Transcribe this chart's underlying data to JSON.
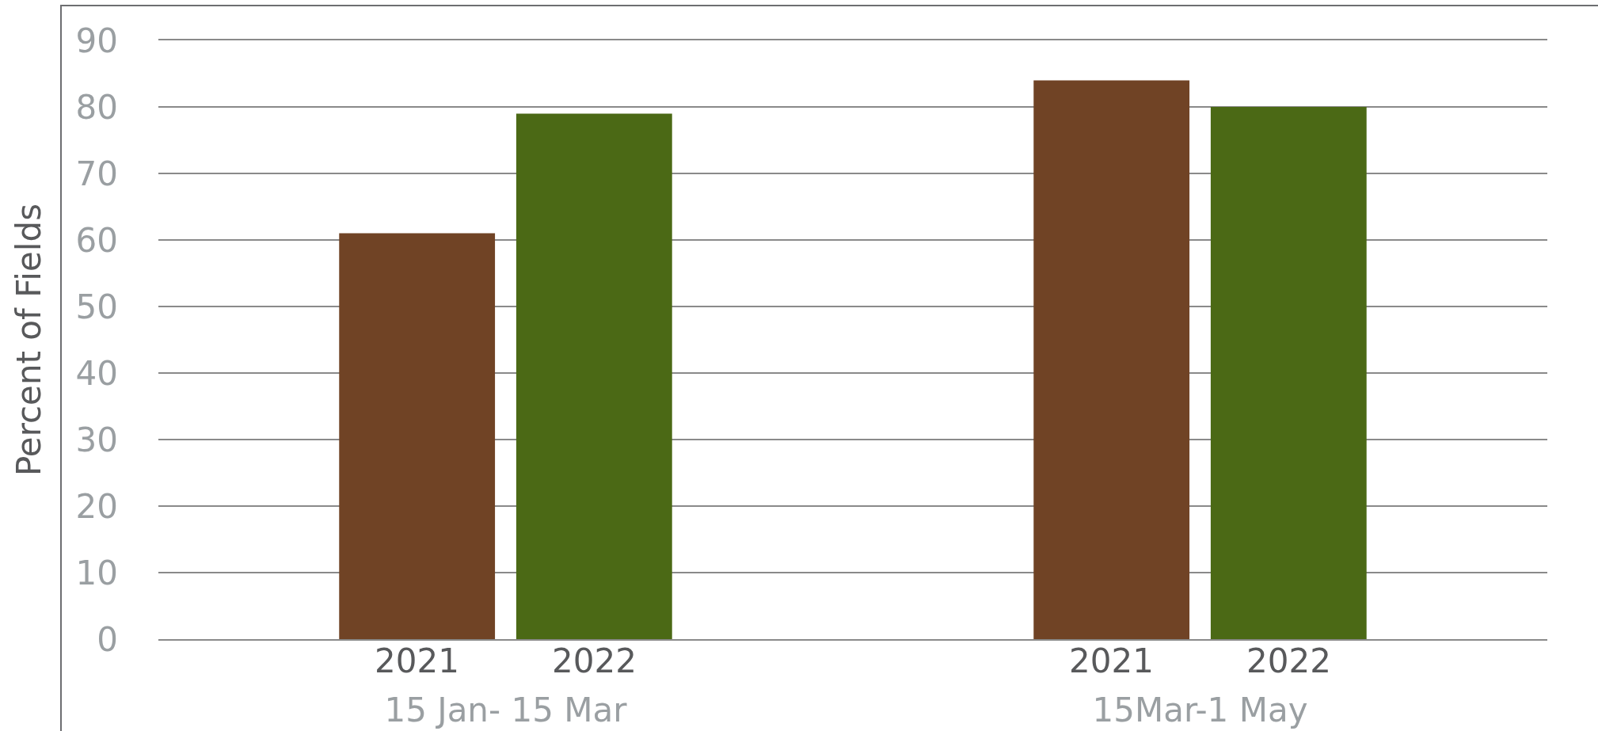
{
  "chart_data": {
    "type": "bar",
    "ylabel": "Percent of Fields",
    "categories": [
      "15 Jan- 15 Mar",
      "15Mar-1 May"
    ],
    "series": [
      {
        "name": "2021",
        "color": "#704325",
        "values": [
          61,
          84
        ]
      },
      {
        "name": "2022",
        "color": "#4b6915",
        "values": [
          79,
          80
        ]
      }
    ],
    "ylim": [
      0,
      90
    ],
    "yticks": [
      0,
      10,
      20,
      30,
      40,
      50,
      60,
      70,
      80,
      90
    ],
    "grid": "y",
    "legend": false
  }
}
